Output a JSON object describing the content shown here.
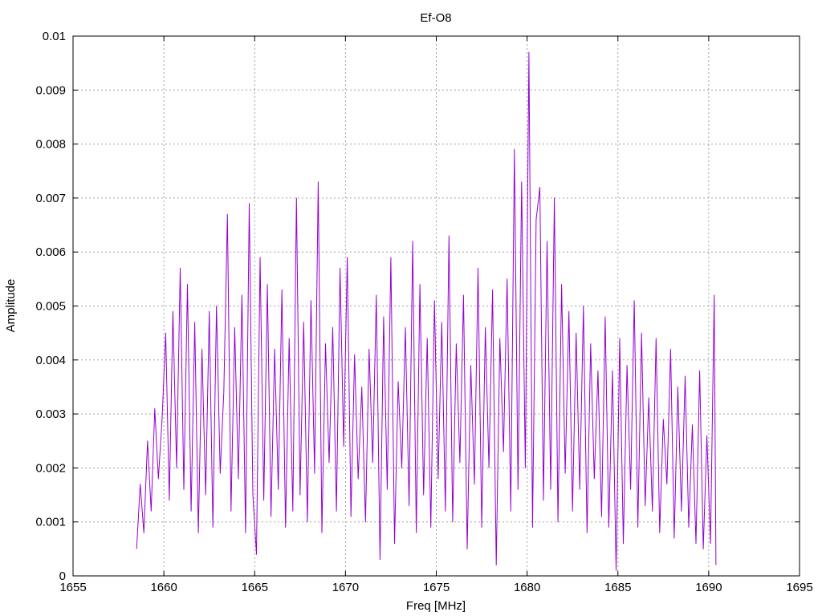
{
  "chart_data": {
    "type": "line",
    "title": "Ef-O8",
    "xlabel": "Freq [MHz]",
    "ylabel": "Amplitude",
    "xlim": [
      1655,
      1695
    ],
    "ylim": [
      0,
      0.01
    ],
    "grid": true,
    "x_ticks": [
      "1655",
      "1660",
      "1665",
      "1670",
      "1675",
      "1680",
      "1685",
      "1690",
      "1695"
    ],
    "y_ticks": [
      "0",
      "0.001",
      "0.002",
      "0.003",
      "0.004",
      "0.005",
      "0.006",
      "0.007",
      "0.008",
      "0.009",
      "0.01"
    ],
    "series": [
      {
        "color": "#9400d3",
        "x": [
          1658.5,
          1658.7,
          1658.9,
          1659.1,
          1659.3,
          1659.5,
          1659.7,
          1659.9,
          1660.1,
          1660.3,
          1660.5,
          1660.7,
          1660.9,
          1661.1,
          1661.3,
          1661.5,
          1661.7,
          1661.9,
          1662.1,
          1662.3,
          1662.5,
          1662.7,
          1662.9,
          1663.1,
          1663.3,
          1663.5,
          1663.7,
          1663.9,
          1664.1,
          1664.3,
          1664.5,
          1664.7,
          1664.9,
          1665.1,
          1665.3,
          1665.5,
          1665.7,
          1665.9,
          1666.1,
          1666.3,
          1666.5,
          1666.7,
          1666.9,
          1667.1,
          1667.3,
          1667.5,
          1667.7,
          1667.9,
          1668.1,
          1668.3,
          1668.5,
          1668.7,
          1668.9,
          1669.1,
          1669.3,
          1669.5,
          1669.7,
          1669.9,
          1670.1,
          1670.3,
          1670.5,
          1670.7,
          1670.9,
          1671.1,
          1671.3,
          1671.5,
          1671.7,
          1671.9,
          1672.1,
          1672.3,
          1672.5,
          1672.7,
          1672.9,
          1673.1,
          1673.3,
          1673.5,
          1673.7,
          1673.9,
          1674.1,
          1674.3,
          1674.5,
          1674.7,
          1674.9,
          1675.1,
          1675.3,
          1675.5,
          1675.7,
          1675.9,
          1676.1,
          1676.3,
          1676.5,
          1676.7,
          1676.9,
          1677.1,
          1677.3,
          1677.5,
          1677.7,
          1677.9,
          1678.1,
          1678.3,
          1678.5,
          1678.7,
          1678.9,
          1679.1,
          1679.3,
          1679.5,
          1679.7,
          1679.9,
          1680.1,
          1680.3,
          1680.5,
          1680.7,
          1680.9,
          1681.1,
          1681.3,
          1681.5,
          1681.7,
          1681.9,
          1682.1,
          1682.3,
          1682.5,
          1682.7,
          1682.9,
          1683.1,
          1683.3,
          1683.5,
          1683.7,
          1683.9,
          1684.1,
          1684.3,
          1684.5,
          1684.7,
          1684.9,
          1685.1,
          1685.3,
          1685.5,
          1685.7,
          1685.9,
          1686.1,
          1686.3,
          1686.5,
          1686.7,
          1686.9,
          1687.1,
          1687.3,
          1687.5,
          1687.7,
          1687.9,
          1688.1,
          1688.3,
          1688.5,
          1688.7,
          1688.9,
          1689.1,
          1689.3,
          1689.5,
          1689.7,
          1689.9,
          1690.1,
          1690.3,
          1690.4
        ],
        "y": [
          0.0005,
          0.0017,
          0.0008,
          0.0025,
          0.0012,
          0.0031,
          0.0018,
          0.0029,
          0.0045,
          0.0014,
          0.0049,
          0.002,
          0.0057,
          0.0016,
          0.0054,
          0.0012,
          0.0047,
          0.0008,
          0.0042,
          0.0015,
          0.0049,
          0.0009,
          0.005,
          0.0019,
          0.0034,
          0.0067,
          0.0012,
          0.0046,
          0.0018,
          0.0052,
          0.0008,
          0.0069,
          0.0015,
          0.0004,
          0.0059,
          0.0014,
          0.0054,
          0.0011,
          0.0042,
          0.0016,
          0.0053,
          0.0009,
          0.0044,
          0.0012,
          0.007,
          0.0015,
          0.0047,
          0.001,
          0.0051,
          0.0019,
          0.0073,
          0.0008,
          0.0043,
          0.0021,
          0.0046,
          0.0012,
          0.0057,
          0.0024,
          0.0059,
          0.0011,
          0.0041,
          0.0018,
          0.0035,
          0.001,
          0.0042,
          0.0021,
          0.0052,
          0.0003,
          0.0048,
          0.0016,
          0.0059,
          0.0006,
          0.0036,
          0.002,
          0.0046,
          0.0013,
          0.0062,
          0.0008,
          0.0054,
          0.0015,
          0.0044,
          0.0009,
          0.0051,
          0.0018,
          0.0047,
          0.0012,
          0.0063,
          0.001,
          0.0043,
          0.0021,
          0.0052,
          0.0005,
          0.0039,
          0.0017,
          0.0057,
          0.0009,
          0.0046,
          0.002,
          0.0053,
          0.0002,
          0.0044,
          0.0023,
          0.0055,
          0.0012,
          0.0079,
          0.0016,
          0.0073,
          0.002,
          0.0097,
          0.0009,
          0.0066,
          0.0072,
          0.0014,
          0.0062,
          0.0016,
          0.007,
          0.001,
          0.0054,
          0.0019,
          0.0049,
          0.0012,
          0.0045,
          0.0016,
          0.005,
          0.0008,
          0.0043,
          0.0018,
          0.0038,
          0.0011,
          0.0048,
          0.0009,
          0.0038,
          0.0001,
          0.0044,
          0.0006,
          0.0039,
          0.0016,
          0.0051,
          0.0009,
          0.0045,
          0.0013,
          0.0033,
          0.0012,
          0.0044,
          0.0008,
          0.0029,
          0.0017,
          0.0042,
          0.0007,
          0.0035,
          0.0012,
          0.0037,
          0.0009,
          0.0028,
          0.0006,
          0.0038,
          0.0005,
          0.0026,
          0.0006,
          0.0052,
          0.0002
        ]
      }
    ]
  }
}
